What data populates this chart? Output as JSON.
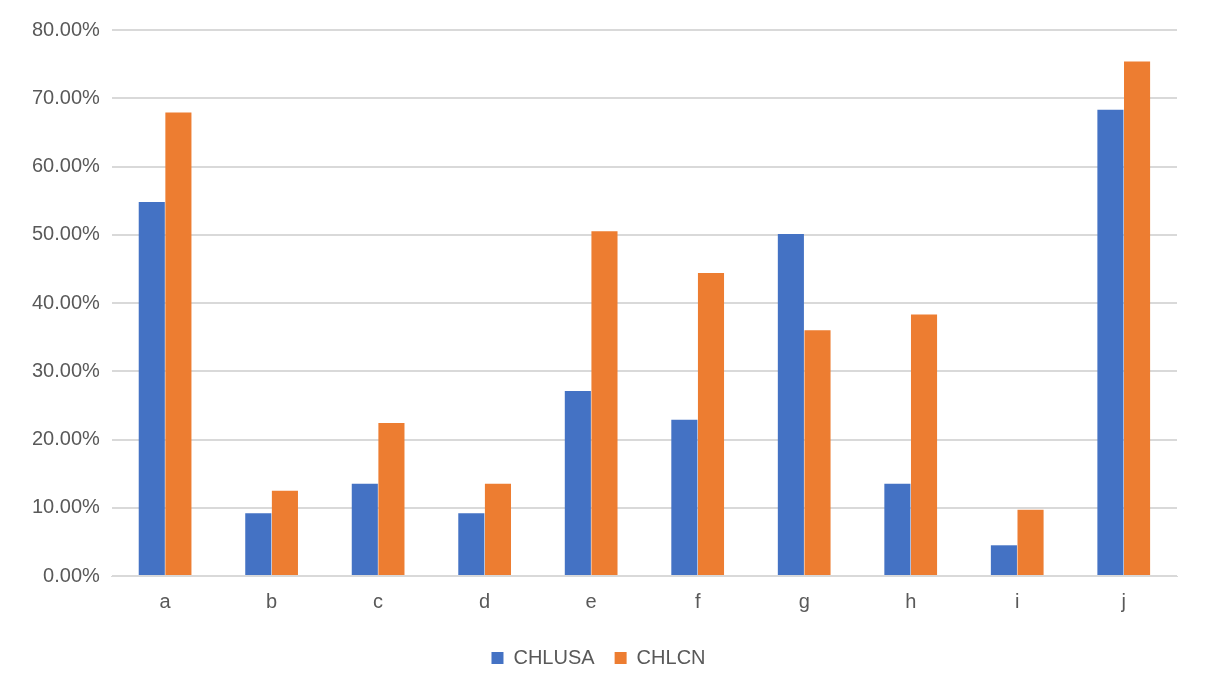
{
  "chart_data": {
    "type": "bar",
    "categories": [
      "a",
      "b",
      "c",
      "d",
      "e",
      "f",
      "g",
      "h",
      "i",
      "j"
    ],
    "series": [
      {
        "name": "CHLUSA",
        "color": "#4472c4",
        "values": [
          54.8,
          9.2,
          13.5,
          9.2,
          27.1,
          22.9,
          50.1,
          13.5,
          4.5,
          68.3
        ]
      },
      {
        "name": "CHLCN",
        "color": "#ed7d31",
        "values": [
          67.9,
          12.5,
          22.4,
          13.5,
          50.5,
          44.4,
          36.0,
          38.3,
          9.7,
          75.4
        ]
      }
    ],
    "ylim": [
      0,
      80
    ],
    "yticks": [
      {
        "value": 0,
        "label": "0.00%"
      },
      {
        "value": 10,
        "label": "10.00%"
      },
      {
        "value": 20,
        "label": "20.00%"
      },
      {
        "value": 30,
        "label": "30.00%"
      },
      {
        "value": 40,
        "label": "40.00%"
      },
      {
        "value": 50,
        "label": "50.00%"
      },
      {
        "value": 60,
        "label": "60.00%"
      },
      {
        "value": 70,
        "label": "70.00%"
      },
      {
        "value": 80,
        "label": "80.00%"
      }
    ],
    "grid": "y",
    "legend": "bottom"
  }
}
